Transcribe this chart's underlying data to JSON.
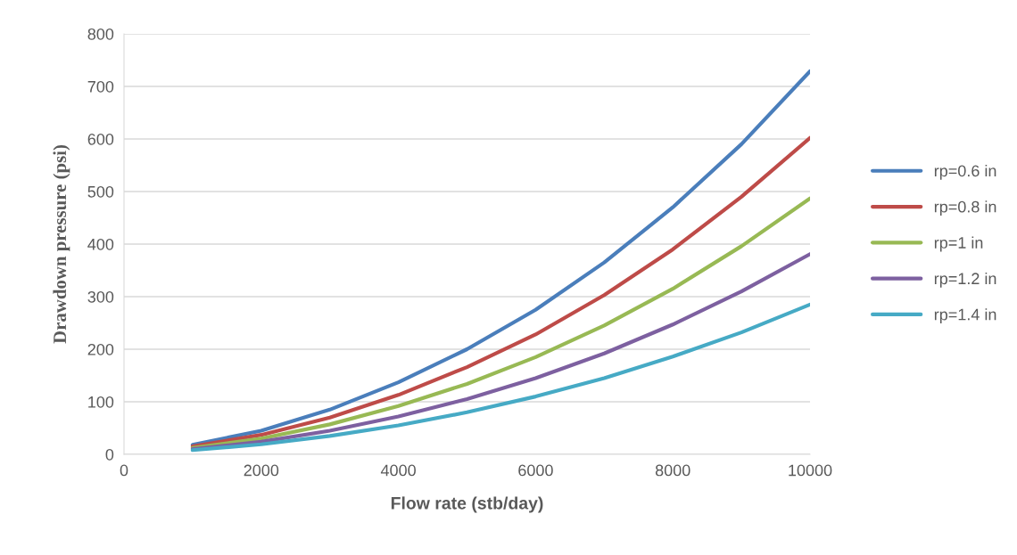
{
  "chart_data": {
    "type": "line",
    "xlabel": "Flow rate (stb/day)",
    "ylabel": "Drawdown pressure (psi)",
    "x": [
      1000,
      2000,
      3000,
      4000,
      5000,
      6000,
      7000,
      8000,
      9000,
      10000
    ],
    "xlim": [
      0,
      10000
    ],
    "xticks": [
      0,
      2000,
      4000,
      6000,
      8000,
      10000
    ],
    "ylim": [
      0,
      800
    ],
    "yticks": [
      0,
      100,
      200,
      300,
      400,
      500,
      600,
      700,
      800
    ],
    "grid": "y",
    "legend": "right",
    "marker": "none",
    "line_style": "solid",
    "series": [
      {
        "name": "rp=0.6 in",
        "color": "#4a7ebb",
        "values": [
          18,
          45,
          85,
          137,
          200,
          275,
          365,
          470,
          590,
          729
        ]
      },
      {
        "name": "rp=0.8 in",
        "color": "#be4b48",
        "values": [
          15,
          37,
          70,
          113,
          166,
          228,
          303,
          390,
          490,
          602
        ]
      },
      {
        "name": "rp=1 in",
        "color": "#98b954",
        "values": [
          12,
          30,
          57,
          92,
          134,
          185,
          245,
          315,
          396,
          487
        ]
      },
      {
        "name": "rp=1.2 in",
        "color": "#7d60a0",
        "values": [
          10,
          24,
          45,
          72,
          105,
          145,
          192,
          247,
          310,
          381
        ]
      },
      {
        "name": "rp=1.4 in",
        "color": "#46aac5",
        "values": [
          8,
          19,
          35,
          55,
          80,
          110,
          145,
          186,
          232,
          285
        ]
      }
    ]
  }
}
